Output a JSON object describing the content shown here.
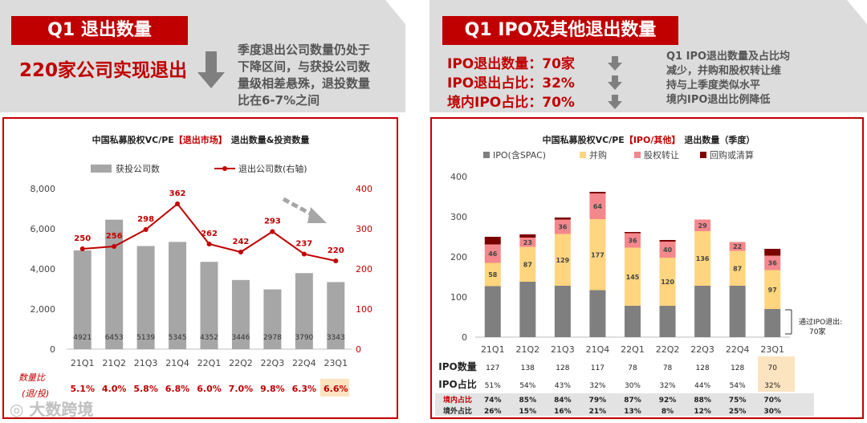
{
  "left": {
    "section_title": "Q1 退出数量",
    "headline": "220家公司实现退出",
    "description": [
      "季度退出公司数量仍处于",
      "下降区间，与获投公司数",
      "量级相差悬殊，退投数量",
      "比在6-7%之间"
    ]
  },
  "right": {
    "section_title": "Q1 IPO及其他退出数量",
    "stats": [
      "IPO退出数量：70家",
      "IPO退出占比：32%",
      "境内IPO占比：70%"
    ],
    "description": [
      "Q1 IPO退出数量及占比均",
      "减少，并购和股权转让维",
      "持与上季度类似水平",
      "境内IPO退出比例降低"
    ]
  },
  "colors": {
    "brand": "#c00000",
    "gray_bar": "#a6a6a6",
    "ipo": "#7f7f7f",
    "ma": "#ffd57f",
    "transfer": "#f4878c",
    "buyback": "#7a0000",
    "highlight": "#fce4c0"
  },
  "watermark": "大数跨境",
  "chart_data": [
    {
      "type": "bar+line",
      "title_parts": [
        "中国私募股权VC/PE",
        "【退出市场】",
        "退出数量&投资数量"
      ],
      "categories": [
        "21Q1",
        "21Q2",
        "21Q3",
        "21Q4",
        "22Q1",
        "22Q2",
        "22Q3",
        "22Q4",
        "23Q1"
      ],
      "series": [
        {
          "name": "获投公司数",
          "kind": "bar",
          "axis": "left",
          "values": [
            4921,
            6453,
            5139,
            5345,
            4352,
            3446,
            2978,
            3790,
            3343
          ]
        },
        {
          "name": "退出公司数(右轴)",
          "kind": "line",
          "axis": "right",
          "values": [
            250,
            256,
            298,
            362,
            262,
            242,
            293,
            237,
            220
          ]
        }
      ],
      "left_axis": {
        "min": 0,
        "max": 8000,
        "ticks": [
          "0",
          "2,000",
          "4,000",
          "6,000",
          "8,000"
        ]
      },
      "right_axis": {
        "min": 0,
        "max": 400,
        "ticks": [
          "0",
          "100",
          "200",
          "300",
          "400"
        ]
      },
      "ratio_label": "数量比",
      "ratio_label_sub": "(退/投)",
      "ratio_values": [
        "5.1%",
        "4.0%",
        "5.8%",
        "6.8%",
        "6.0%",
        "7.0%",
        "9.8%",
        "6.3%",
        "6.6%"
      ]
    },
    {
      "type": "stacked-bar",
      "title_parts": [
        "中国私募股权VC/PE",
        "【IPO/其他】",
        "退出数量（季度）"
      ],
      "categories": [
        "21Q1",
        "21Q2",
        "21Q3",
        "21Q4",
        "22Q1",
        "22Q2",
        "22Q3",
        "22Q4",
        "23Q1"
      ],
      "series": [
        {
          "name": "IPO(含SPAC)",
          "values": [
            127,
            138,
            128,
            117,
            78,
            78,
            128,
            128,
            70
          ]
        },
        {
          "name": "并购",
          "values": [
            58,
            87,
            129,
            177,
            145,
            120,
            136,
            87,
            97
          ]
        },
        {
          "name": "股权转让",
          "values": [
            46,
            23,
            36,
            64,
            36,
            40,
            29,
            22,
            36
          ]
        },
        {
          "name": "回购或清算",
          "values": [
            19,
            8,
            5,
            4,
            3,
            4,
            0,
            0,
            17
          ]
        }
      ],
      "y_axis": {
        "min": 0,
        "max": 400,
        "ticks": [
          "0",
          "100",
          "200",
          "300",
          "400"
        ]
      },
      "annotation": [
        "通过IPO退出:",
        "70家"
      ],
      "table": [
        {
          "label": "IPO数量",
          "values": [
            "127",
            "138",
            "128",
            "117",
            "78",
            "78",
            "128",
            "128",
            "70"
          ]
        },
        {
          "label": "IPO占比",
          "values": [
            "51%",
            "54%",
            "43%",
            "32%",
            "30%",
            "32%",
            "44%",
            "54%",
            "32%"
          ]
        },
        {
          "label": "境内占比",
          "values": [
            "74%",
            "85%",
            "84%",
            "79%",
            "87%",
            "92%",
            "88%",
            "75%",
            "70%"
          ]
        },
        {
          "label": "境外占比",
          "values": [
            "26%",
            "15%",
            "16%",
            "21%",
            "13%",
            "8%",
            "12%",
            "25%",
            "30%"
          ]
        }
      ]
    }
  ]
}
